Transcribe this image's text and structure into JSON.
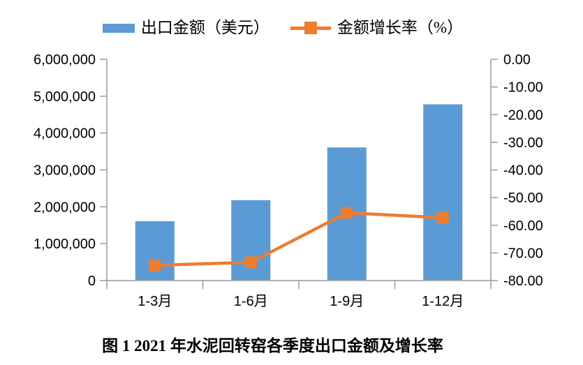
{
  "legend": {
    "items": [
      {
        "label": "出口金额（美元）",
        "type": "bar",
        "color": "#5B9BD5"
      },
      {
        "label": "金额增长率（%）",
        "type": "line-marker",
        "color": "#ED7D31"
      }
    ]
  },
  "caption": "图 1  2021 年水泥回转窑各季度出口金额及增长率",
  "colors": {
    "bar": "#5B9BD5",
    "line": "#ED7D31",
    "axis": "#A6A6A6",
    "text": "#000000"
  },
  "chart_data": {
    "type": "bar+line combo",
    "categories": [
      "1-3月",
      "1-6月",
      "1-9月",
      "1-12月"
    ],
    "series": [
      {
        "name": "出口金额（美元）",
        "type": "bar",
        "axis": "left",
        "color": "#5B9BD5",
        "values": [
          1610000,
          2180000,
          3610000,
          4780000
        ]
      },
      {
        "name": "金额增长率（%）",
        "type": "line",
        "axis": "right",
        "color": "#ED7D31",
        "marker": "square",
        "values": [
          -74.5,
          -73.4,
          -55.5,
          -57.3
        ]
      }
    ],
    "left_axis": {
      "min": 0,
      "max": 6000000,
      "step": 1000000,
      "tick_labels": [
        "6,000,000",
        "5,000,000",
        "4,000,000",
        "3,000,000",
        "2,000,000",
        "1,000,000",
        "0"
      ]
    },
    "right_axis": {
      "min": -80,
      "max": 0,
      "step": 10,
      "tick_labels": [
        "0.00",
        "-10.00",
        "-20.00",
        "-30.00",
        "-40.00",
        "-50.00",
        "-60.00",
        "-70.00",
        "-80.00"
      ]
    },
    "grid": false,
    "legend_position": "top",
    "title": "图 1  2021 年水泥回转窑各季度出口金额及增长率"
  }
}
